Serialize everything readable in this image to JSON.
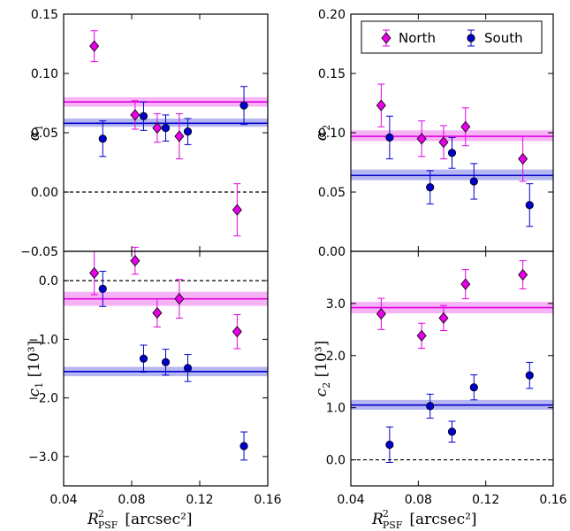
{
  "colors": {
    "north": "#e500e5",
    "north_band": "#f4a6f4",
    "south": "#0000cc",
    "south_band": "#a9a9ef",
    "marker_edge": "#000000"
  },
  "legend": {
    "entries": [
      {
        "label": "North",
        "marker": "diamond",
        "color": "#e500e5"
      },
      {
        "label": "South",
        "marker": "circle",
        "color": "#0000cc"
      }
    ],
    "placement": "top-right of upper-right panel"
  },
  "chart_data": [
    {
      "id": "alpha1",
      "type": "scatter",
      "ylabel_main": "α",
      "ylabel_sub": "1",
      "ylabel_suffix": "",
      "xlim": [
        0.04,
        0.16
      ],
      "ylim": [
        -0.05,
        0.15
      ],
      "yticks": [
        -0.05,
        0.0,
        0.05,
        0.1,
        0.15
      ],
      "ytick_labels": [
        "−0.05",
        "0.00",
        "0.05",
        "0.10",
        "0.15"
      ],
      "xticks": [
        0.04,
        0.08,
        0.12,
        0.16
      ],
      "ref_line": 0.0,
      "show_xtick_labels": false,
      "series": [
        {
          "name": "North",
          "marker": "diamond",
          "mean": 0.076,
          "band": [
            0.072,
            0.08
          ],
          "points": [
            {
              "x": 0.058,
              "y": 0.123,
              "err": 0.013
            },
            {
              "x": 0.082,
              "y": 0.065,
              "err": 0.012
            },
            {
              "x": 0.095,
              "y": 0.054,
              "err": 0.012
            },
            {
              "x": 0.108,
              "y": 0.047,
              "err": 0.019
            },
            {
              "x": 0.142,
              "y": -0.015,
              "err": 0.022
            }
          ]
        },
        {
          "name": "South",
          "marker": "circle",
          "mean": 0.058,
          "band": [
            0.055,
            0.062
          ],
          "points": [
            {
              "x": 0.063,
              "y": 0.045,
              "err": 0.015
            },
            {
              "x": 0.087,
              "y": 0.064,
              "err": 0.012
            },
            {
              "x": 0.1,
              "y": 0.054,
              "err": 0.011
            },
            {
              "x": 0.113,
              "y": 0.051,
              "err": 0.011
            },
            {
              "x": 0.146,
              "y": 0.073,
              "err": 0.016
            }
          ]
        }
      ]
    },
    {
      "id": "alpha2",
      "type": "scatter",
      "ylabel_main": "α",
      "ylabel_sub": "2",
      "ylabel_suffix": "",
      "xlim": [
        0.04,
        0.16
      ],
      "ylim": [
        0.0,
        0.2
      ],
      "yticks": [
        0.0,
        0.05,
        0.1,
        0.15,
        0.2
      ],
      "ytick_labels": [
        "0.00",
        "0.05",
        "0.10",
        "0.15",
        "0.20"
      ],
      "xticks": [
        0.04,
        0.08,
        0.12,
        0.16
      ],
      "ref_line": null,
      "show_xtick_labels": false,
      "series": [
        {
          "name": "North",
          "marker": "diamond",
          "mean": 0.097,
          "band": [
            0.093,
            0.102
          ],
          "points": [
            {
              "x": 0.058,
              "y": 0.123,
              "err": 0.018
            },
            {
              "x": 0.082,
              "y": 0.095,
              "err": 0.015
            },
            {
              "x": 0.095,
              "y": 0.092,
              "err": 0.014
            },
            {
              "x": 0.108,
              "y": 0.105,
              "err": 0.016
            },
            {
              "x": 0.142,
              "y": 0.078,
              "err": 0.019
            }
          ]
        },
        {
          "name": "South",
          "marker": "circle",
          "mean": 0.064,
          "band": [
            0.06,
            0.069
          ],
          "points": [
            {
              "x": 0.063,
              "y": 0.096,
              "err": 0.018
            },
            {
              "x": 0.087,
              "y": 0.054,
              "err": 0.014
            },
            {
              "x": 0.1,
              "y": 0.083,
              "err": 0.013
            },
            {
              "x": 0.113,
              "y": 0.059,
              "err": 0.015
            },
            {
              "x": 0.146,
              "y": 0.039,
              "err": 0.018
            }
          ]
        }
      ]
    },
    {
      "id": "c1",
      "type": "scatter",
      "ylabel_main": "c",
      "ylabel_sub": "1",
      "ylabel_suffix": " [10³]",
      "xlim": [
        0.04,
        0.16
      ],
      "ylim": [
        -3.5,
        0.5
      ],
      "yticks": [
        -3.0,
        -2.0,
        -1.0,
        0.0
      ],
      "ytick_labels": [
        "−3.0",
        "−2.0",
        "−1.0",
        "0.0"
      ],
      "xticks": [
        0.04,
        0.08,
        0.12,
        0.16
      ],
      "xtick_labels": [
        "0.04",
        "0.08",
        "0.12",
        "0.16"
      ],
      "ref_line": 0.0,
      "show_xtick_labels": true,
      "series": [
        {
          "name": "North",
          "marker": "diamond",
          "mean": -0.31,
          "band": [
            -0.43,
            -0.19
          ],
          "points": [
            {
              "x": 0.058,
              "y": 0.13,
              "err": 0.37
            },
            {
              "x": 0.082,
              "y": 0.34,
              "err": 0.23
            },
            {
              "x": 0.095,
              "y": -0.55,
              "err": 0.24
            },
            {
              "x": 0.108,
              "y": -0.31,
              "err": 0.33
            },
            {
              "x": 0.142,
              "y": -0.87,
              "err": 0.29
            }
          ]
        },
        {
          "name": "South",
          "marker": "circle",
          "mean": -1.55,
          "band": [
            -1.63,
            -1.47
          ],
          "points": [
            {
              "x": 0.063,
              "y": -0.14,
              "err": 0.3
            },
            {
              "x": 0.087,
              "y": -1.33,
              "err": 0.23
            },
            {
              "x": 0.1,
              "y": -1.39,
              "err": 0.22
            },
            {
              "x": 0.113,
              "y": -1.49,
              "err": 0.23
            },
            {
              "x": 0.146,
              "y": -2.82,
              "err": 0.24
            }
          ]
        }
      ]
    },
    {
      "id": "c2",
      "type": "scatter",
      "ylabel_main": "c",
      "ylabel_sub": "2",
      "ylabel_suffix": " [10³]",
      "xlim": [
        0.04,
        0.16
      ],
      "ylim": [
        -0.5,
        4.0
      ],
      "yticks": [
        0.0,
        1.0,
        2.0,
        3.0
      ],
      "ytick_labels": [
        "0.0",
        "1.0",
        "2.0",
        "3.0"
      ],
      "xticks": [
        0.04,
        0.08,
        0.12,
        0.16
      ],
      "xtick_labels": [
        "0.04",
        "0.08",
        "0.12",
        "0.16"
      ],
      "ref_line": 0.0,
      "show_xtick_labels": true,
      "series": [
        {
          "name": "North",
          "marker": "diamond",
          "mean": 2.92,
          "band": [
            2.81,
            3.03
          ],
          "points": [
            {
              "x": 0.058,
              "y": 2.8,
              "err": 0.3
            },
            {
              "x": 0.082,
              "y": 2.38,
              "err": 0.24
            },
            {
              "x": 0.095,
              "y": 2.72,
              "err": 0.24
            },
            {
              "x": 0.108,
              "y": 3.37,
              "err": 0.28
            },
            {
              "x": 0.142,
              "y": 3.55,
              "err": 0.27
            }
          ]
        },
        {
          "name": "South",
          "marker": "circle",
          "mean": 1.05,
          "band": [
            0.96,
            1.15
          ],
          "points": [
            {
              "x": 0.063,
              "y": 0.29,
              "err": 0.34
            },
            {
              "x": 0.087,
              "y": 1.03,
              "err": 0.23
            },
            {
              "x": 0.1,
              "y": 0.54,
              "err": 0.2
            },
            {
              "x": 0.113,
              "y": 1.39,
              "err": 0.24
            },
            {
              "x": 0.146,
              "y": 1.62,
              "err": 0.25
            }
          ]
        }
      ]
    }
  ],
  "xaxis_label": {
    "main": "R",
    "sup": "2",
    "sub": "PSF",
    "units": "[arcsec²]"
  }
}
